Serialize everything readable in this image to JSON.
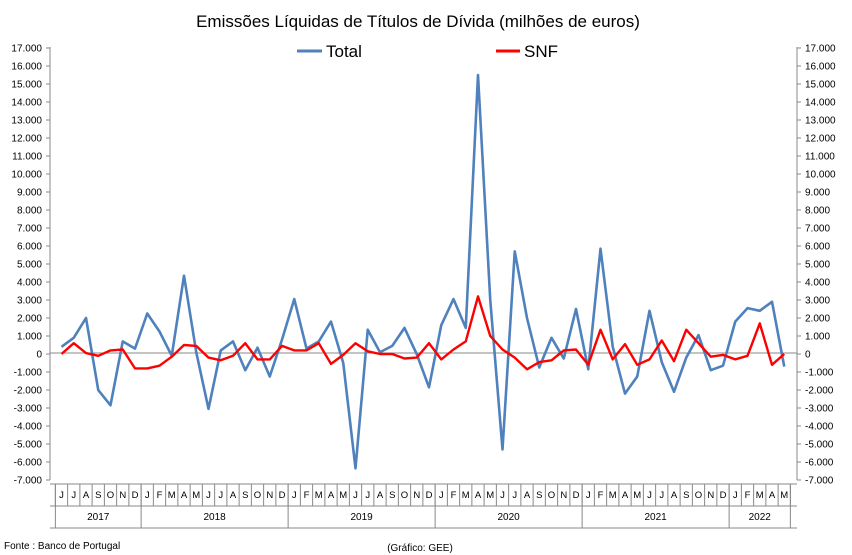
{
  "chart_data": {
    "type": "line",
    "title": "Emissões Líquidas de Títulos de Dívida (milhões de euros)",
    "source": "Fonte : Banco de Portugal",
    "credit": "(Gráfico: GEE)",
    "legend_position": "top",
    "grid": false,
    "ylim": [
      -7000,
      17000
    ],
    "y_tick_labels": [
      "17.000",
      "16.000",
      "15.000",
      "14.000",
      "13.000",
      "12.000",
      "11.000",
      "10.000",
      "9.000",
      "8.000",
      "7.000",
      "6.000",
      "5.000",
      "4.000",
      "3.000",
      "2.000",
      "1.000",
      "0",
      "-1.000",
      "-2.000",
      "-3.000",
      "-4.000",
      "-5.000",
      "-6.000",
      "-7.000"
    ],
    "x_month_labels": [
      "J",
      "J",
      "A",
      "S",
      "O",
      "N",
      "D",
      "J",
      "F",
      "M",
      "A",
      "M",
      "J",
      "J",
      "A",
      "S",
      "O",
      "N",
      "D",
      "J",
      "F",
      "M",
      "A",
      "M",
      "J",
      "J",
      "A",
      "S",
      "O",
      "N",
      "D",
      "J",
      "F",
      "M",
      "A",
      "M",
      "J",
      "J",
      "A",
      "S",
      "O",
      "N",
      "D",
      "J",
      "F",
      "M",
      "A",
      "M",
      "J",
      "J",
      "A",
      "S",
      "O",
      "N",
      "D",
      "J",
      "F",
      "M",
      "A",
      "M"
    ],
    "years": [
      {
        "label": "2017",
        "start": 0,
        "end": 6
      },
      {
        "label": "2018",
        "start": 7,
        "end": 18
      },
      {
        "label": "2019",
        "start": 19,
        "end": 30
      },
      {
        "label": "2020",
        "start": 31,
        "end": 42
      },
      {
        "label": "2021",
        "start": 43,
        "end": 54
      },
      {
        "label": "2022",
        "start": 55,
        "end": 59
      }
    ],
    "series": [
      {
        "name": "Total",
        "color": "#4f81bd",
        "values": [
          400,
          900,
          2000,
          -2000,
          -2850,
          700,
          300,
          2250,
          1250,
          -100,
          4350,
          100,
          -3050,
          200,
          700,
          -900,
          350,
          -1250,
          800,
          3050,
          300,
          700,
          1800,
          -500,
          -6350,
          1350,
          100,
          450,
          1450,
          -10,
          -1850,
          1600,
          3050,
          1450,
          15500,
          3000,
          -5300,
          5700,
          2000,
          -750,
          900,
          -250,
          2500,
          -850,
          5850,
          400,
          -2200,
          -1250,
          2400,
          -450,
          -2100,
          -200,
          1050,
          -900,
          -650,
          1800,
          2550,
          2400,
          2900,
          -700
        ]
      },
      {
        "name": "SNF",
        "color": "#ff0000",
        "values": [
          0,
          600,
          50,
          -100,
          200,
          250,
          -800,
          -800,
          -650,
          -150,
          500,
          450,
          -200,
          -350,
          -100,
          600,
          -300,
          -300,
          450,
          200,
          200,
          600,
          -550,
          -50,
          600,
          150,
          0,
          0,
          -250,
          -200,
          600,
          -300,
          250,
          700,
          3200,
          1000,
          250,
          -200,
          -850,
          -450,
          -350,
          200,
          250,
          -600,
          1350,
          -300,
          550,
          -600,
          -300,
          750,
          -400,
          1350,
          600,
          -150,
          -50,
          -300,
          -100,
          1700,
          -600,
          0
        ]
      }
    ]
  }
}
